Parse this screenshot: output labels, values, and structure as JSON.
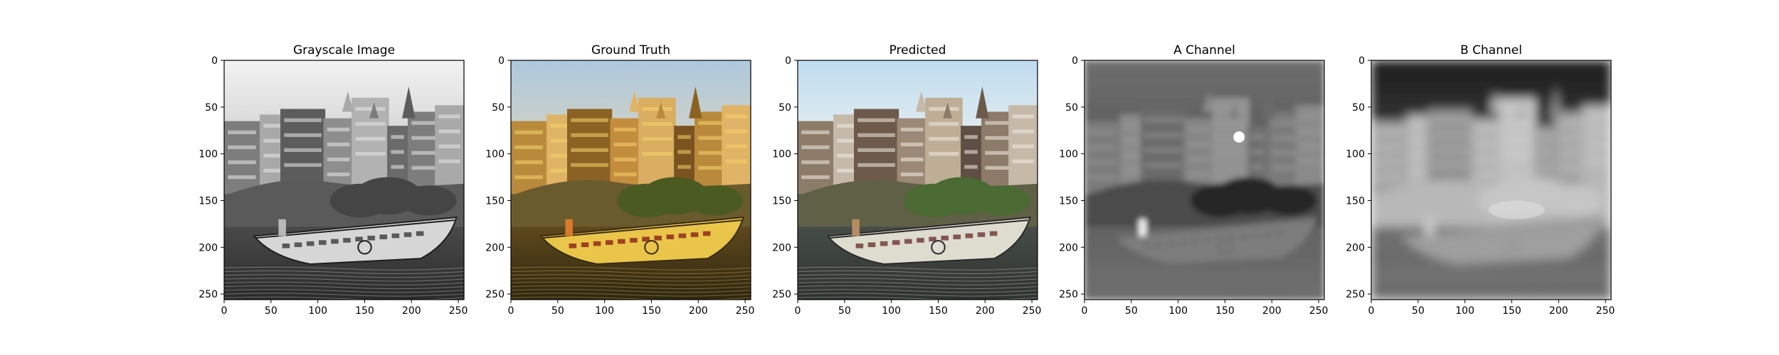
{
  "figure": {
    "panels": [
      {
        "title": "Grayscale Image",
        "kind": "grayscale",
        "x_ticks": [
          "0",
          "50",
          "100",
          "150",
          "200",
          "250"
        ],
        "y_ticks": [
          "0",
          "50",
          "100",
          "150",
          "200",
          "250"
        ],
        "xlim": [
          0,
          256
        ],
        "ylim": [
          256,
          0
        ]
      },
      {
        "title": "Ground Truth",
        "kind": "ground-truth",
        "x_ticks": [
          "0",
          "50",
          "100",
          "150",
          "200",
          "250"
        ],
        "y_ticks": [
          "0",
          "50",
          "100",
          "150",
          "200",
          "250"
        ],
        "xlim": [
          0,
          256
        ],
        "ylim": [
          256,
          0
        ]
      },
      {
        "title": "Predicted",
        "kind": "predicted",
        "x_ticks": [
          "0",
          "50",
          "100",
          "150",
          "200",
          "250"
        ],
        "y_ticks": [
          "0",
          "50",
          "100",
          "150",
          "200",
          "250"
        ],
        "xlim": [
          0,
          256
        ],
        "ylim": [
          256,
          0
        ]
      },
      {
        "title": "A Channel",
        "kind": "a-channel",
        "x_ticks": [
          "0",
          "50",
          "100",
          "150",
          "200",
          "250"
        ],
        "y_ticks": [
          "0",
          "50",
          "100",
          "150",
          "200",
          "250"
        ],
        "xlim": [
          0,
          256
        ],
        "ylim": [
          256,
          0
        ]
      },
      {
        "title": "B Channel",
        "kind": "b-channel",
        "x_ticks": [
          "0",
          "50",
          "100",
          "150",
          "200",
          "250"
        ],
        "y_ticks": [
          "0",
          "50",
          "100",
          "150",
          "200",
          "250"
        ],
        "xlim": [
          0,
          256
        ],
        "ylim": [
          256,
          0
        ]
      }
    ],
    "colors": {
      "axis": "#000000",
      "background": "#ffffff"
    }
  }
}
